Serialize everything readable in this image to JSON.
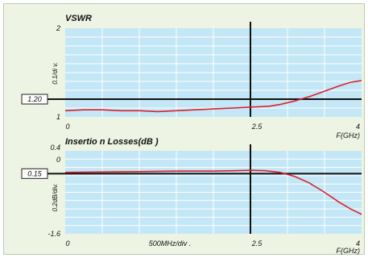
{
  "colors": {
    "background": "#eef4e3",
    "plot_area": "#c3e7f6",
    "grid": "#ffffff",
    "curve": "#d9202a",
    "reference": "#111111"
  },
  "chart_data": [
    {
      "type": "line",
      "title": "VSWR",
      "xlabel": "F(GHz)",
      "ylabel": "0.1/di v.",
      "xlim": [
        0,
        4
      ],
      "ylim": [
        1,
        2
      ],
      "x_tick_labels": [
        "0",
        "2.5",
        "4"
      ],
      "y_tick_labels": [
        "2",
        "1"
      ],
      "grid": true,
      "reference_line": {
        "value": 1.2,
        "label": "1.20"
      },
      "marker_x": 2.5,
      "series": [
        {
          "x": [
            0,
            0.25,
            0.5,
            0.75,
            1.0,
            1.25,
            1.5,
            1.75,
            2.0,
            2.25,
            2.5,
            2.75,
            2.9,
            3.1,
            3.3,
            3.5,
            3.7,
            3.85,
            4.0
          ],
          "values": [
            1.07,
            1.08,
            1.08,
            1.07,
            1.07,
            1.06,
            1.07,
            1.08,
            1.09,
            1.1,
            1.11,
            1.12,
            1.14,
            1.18,
            1.23,
            1.29,
            1.35,
            1.39,
            1.41
          ]
        }
      ]
    },
    {
      "type": "line",
      "title": "Insertio n Losses(dB )",
      "xlabel": "F(GHz)",
      "ylabel": "0.2dB/div.",
      "xlim": [
        0,
        4
      ],
      "ylim": [
        -1.6,
        0.4
      ],
      "x_tick_labels": [
        "0",
        "500MHz/div .",
        "2.5",
        "4"
      ],
      "y_tick_labels": [
        "0.4",
        "0",
        "-1.6"
      ],
      "grid": true,
      "reference_line": {
        "value": -0.15,
        "label": "0.15"
      },
      "marker_x": 2.5,
      "series": [
        {
          "x": [
            0,
            0.5,
            1.0,
            1.5,
            2.0,
            2.3,
            2.5,
            2.7,
            2.9,
            3.1,
            3.3,
            3.5,
            3.7,
            3.85,
            4.0
          ],
          "values": [
            -0.12,
            -0.11,
            -0.1,
            -0.09,
            -0.09,
            -0.08,
            -0.07,
            -0.08,
            -0.12,
            -0.22,
            -0.38,
            -0.6,
            -0.84,
            -1.0,
            -1.13
          ]
        }
      ]
    }
  ]
}
